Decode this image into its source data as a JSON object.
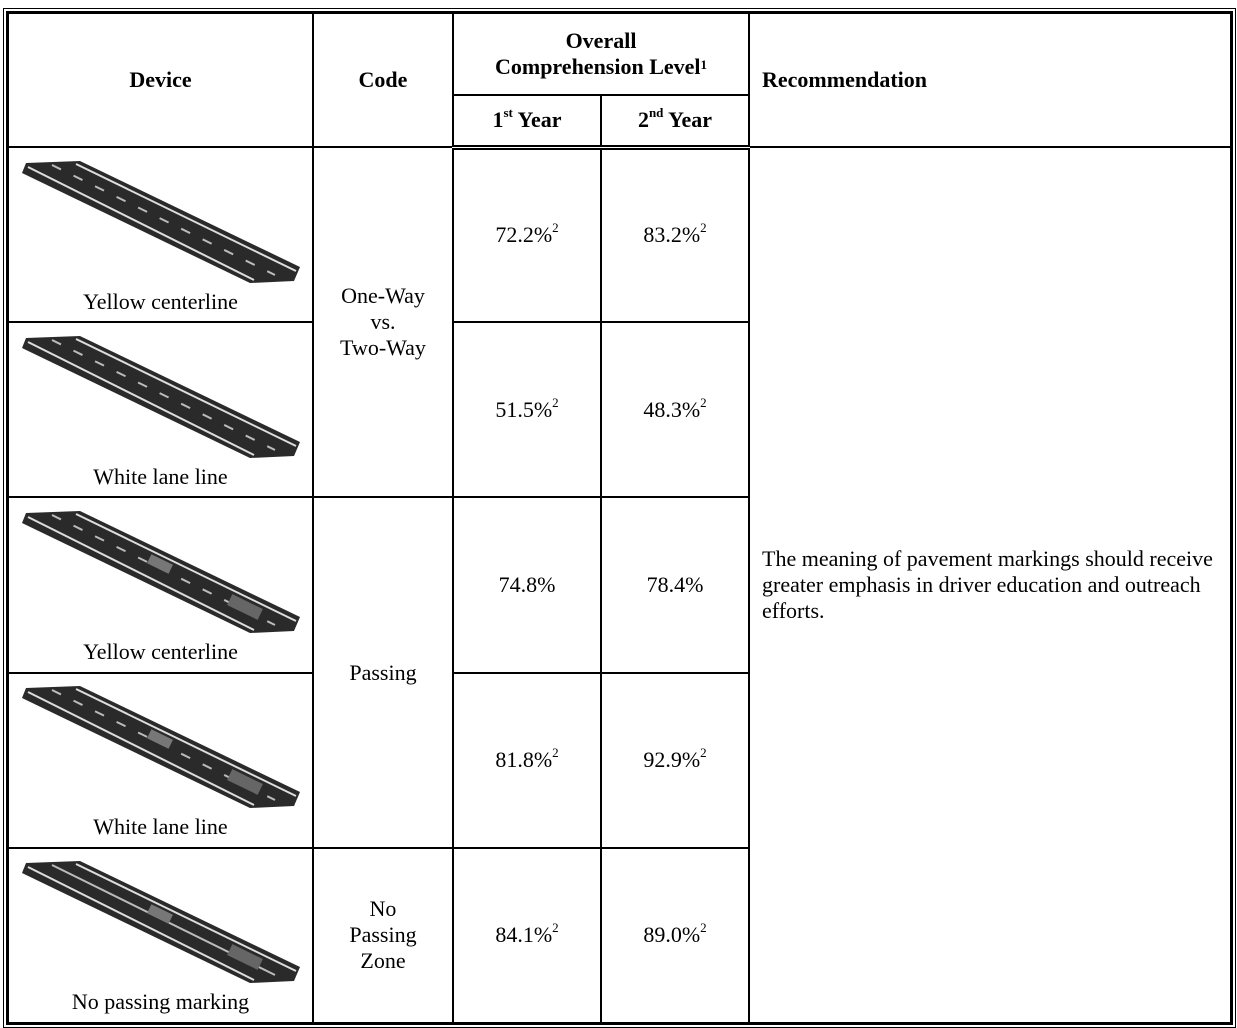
{
  "table": {
    "header": {
      "device": "Device",
      "code": "Code",
      "overall": {
        "lines": [
          "Overall",
          "Comprehension Level"
        ],
        "note": "1"
      },
      "year1": {
        "num": "1",
        "sup": "st",
        "word": "Year"
      },
      "year2": {
        "num": "2",
        "sup": "nd",
        "word": "Year"
      },
      "recommendation": "Recommendation"
    },
    "codes": [
      {
        "lines": [
          "One-Way",
          "vs.",
          "Two-Way"
        ]
      },
      {
        "lines": [
          "Passing"
        ]
      },
      {
        "lines": [
          "No",
          "Passing",
          "Zone"
        ]
      }
    ],
    "rows": [
      {
        "device": "Yellow centerline",
        "year1": {
          "value": "72.2%",
          "note": "2"
        },
        "year2": {
          "value": "83.2%",
          "note": "2"
        }
      },
      {
        "device": "White lane line",
        "year1": {
          "value": "51.5%",
          "note": "2"
        },
        "year2": {
          "value": "48.3%",
          "note": "2"
        }
      },
      {
        "device": "Yellow centerline",
        "year1": {
          "value": "74.8%"
        },
        "year2": {
          "value": "78.4%"
        }
      },
      {
        "device": "White lane line",
        "year1": {
          "value": "81.8%",
          "note": "2"
        },
        "year2": {
          "value": "92.9%",
          "note": "2"
        }
      },
      {
        "device": "No passing marking",
        "year1": {
          "value": "84.1%",
          "note": "2"
        },
        "year2": {
          "value": "89.0%",
          "note": "2"
        }
      }
    ],
    "recommendation": "The meaning of pavement markings should receive greater emphasis in driver education and outreach efforts."
  }
}
